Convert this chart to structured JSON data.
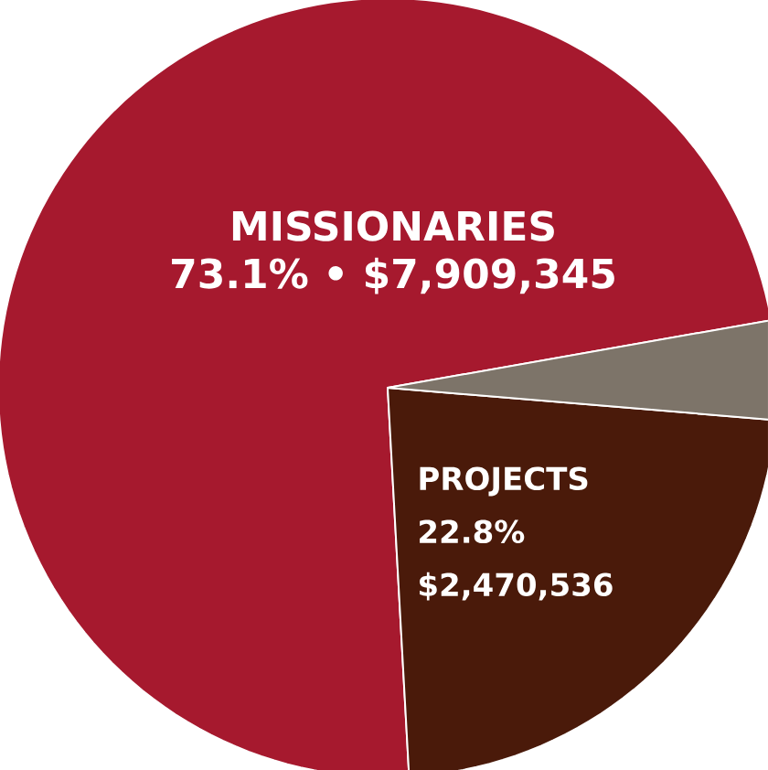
{
  "chart_data": {
    "type": "pie",
    "categories": [
      "MISSIONARIES",
      "PROJECTS",
      null
    ],
    "values": [
      73.1,
      22.8,
      4.1
    ],
    "colors": [
      "#a6192e",
      "#4a1a0a",
      "#7d7469"
    ],
    "value_labels": [
      "73.1% • $7,909,345",
      "22.8% $2,470,536",
      null
    ]
  }
}
